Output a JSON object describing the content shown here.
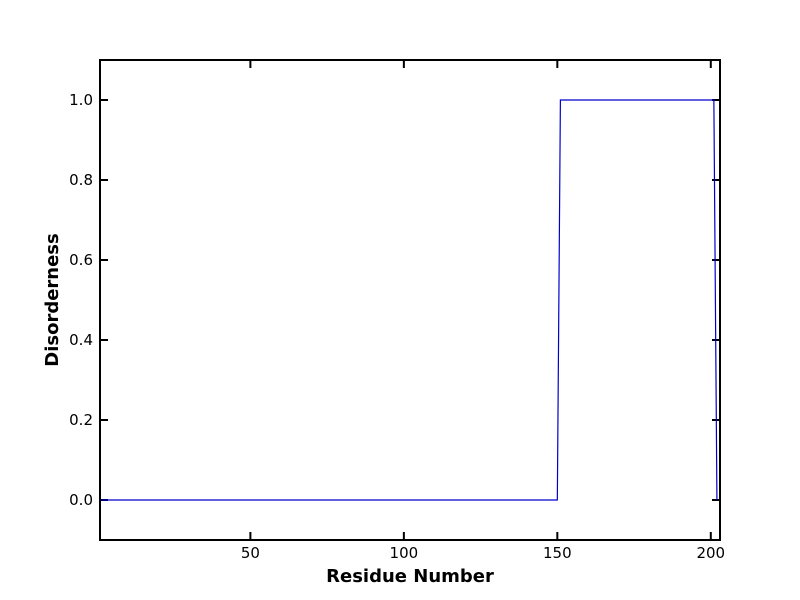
{
  "chart_data": {
    "type": "line",
    "title": "",
    "xlabel": "Residue Number",
    "ylabel": "Disorderness",
    "xlim": [
      1,
      203
    ],
    "ylim": [
      -0.1,
      1.1
    ],
    "x_ticks": [
      50,
      100,
      150,
      200
    ],
    "y_ticks": [
      0.0,
      0.2,
      0.4,
      0.6,
      0.8,
      1.0
    ],
    "x_tick_labels": [
      "50",
      "100",
      "150",
      "200"
    ],
    "y_tick_labels": [
      "0.0",
      "0.2",
      "0.4",
      "0.6",
      "0.8",
      "1.0"
    ],
    "grid": false,
    "series": [
      {
        "color": "#0000cc",
        "x": [
          1,
          150,
          151,
          201,
          202
        ],
        "y": [
          0,
          0,
          1,
          1,
          0
        ]
      }
    ]
  }
}
